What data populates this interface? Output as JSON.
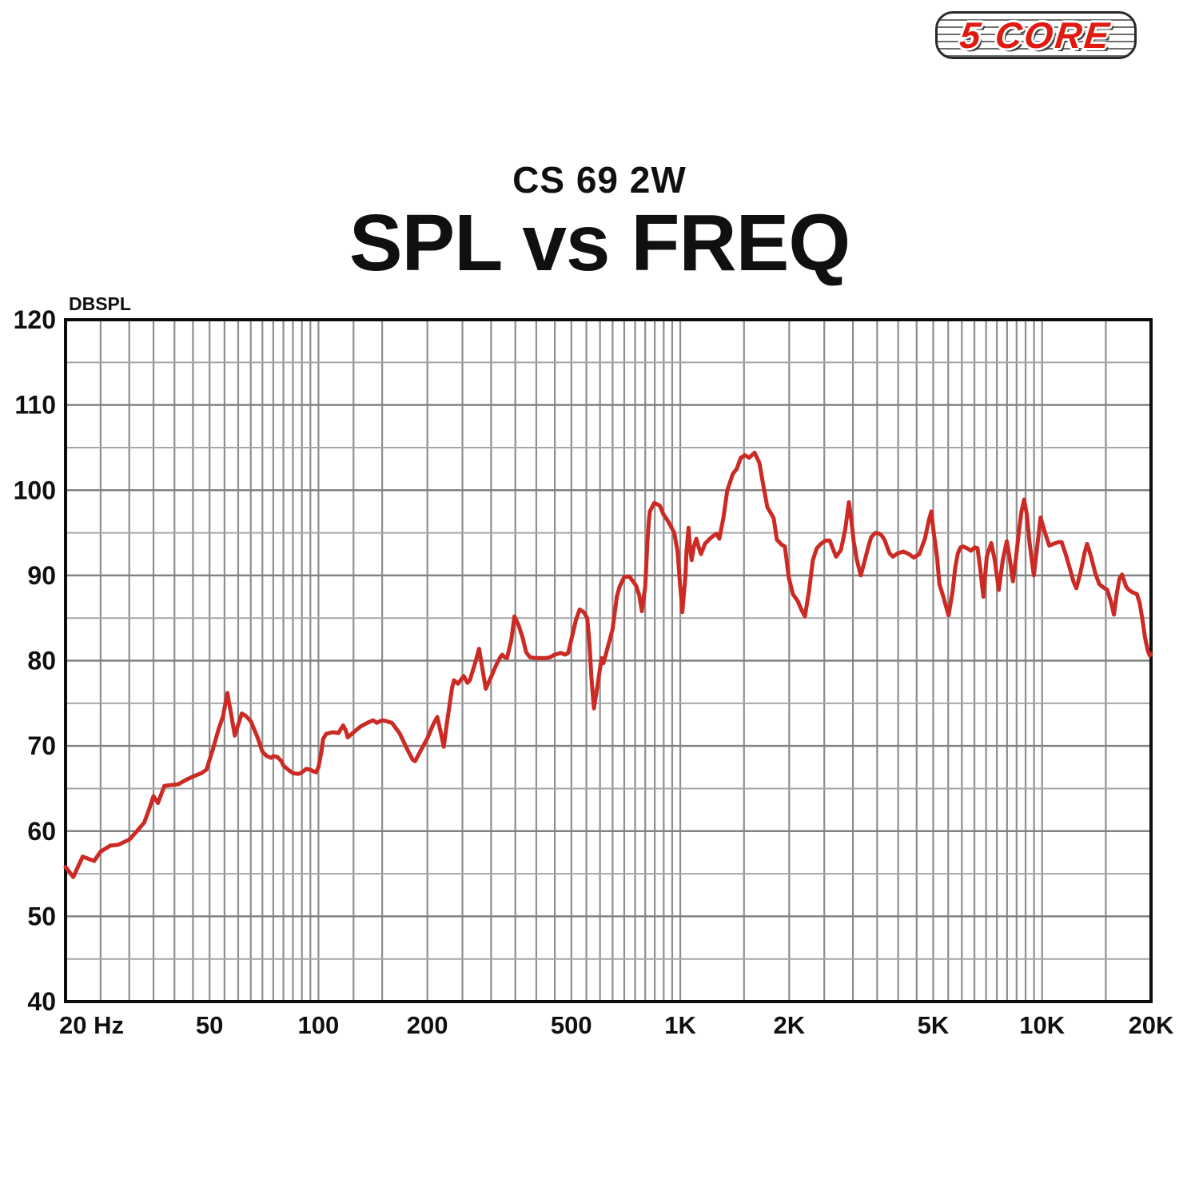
{
  "logo": {
    "text": "5 CORE",
    "color": "#e01a11"
  },
  "header": {
    "subtitle": "CS 69 2W",
    "title": "SPL vs FREQ"
  },
  "chart_data": {
    "type": "line",
    "title": "SPL vs FREQ",
    "subtitle": "CS 69 2W",
    "ylabel": "DBSPL",
    "x_scale": "log",
    "xlim": [
      20,
      20000
    ],
    "ylim": [
      40,
      120
    ],
    "grid": true,
    "legend": "none",
    "y_major_ticks": [
      40,
      50,
      60,
      70,
      80,
      90,
      100,
      110,
      120
    ],
    "y_minor_step": 5,
    "x_ticks": [
      {
        "f": 20,
        "label": "20 Hz"
      },
      {
        "f": 50,
        "label": "50"
      },
      {
        "f": 100,
        "label": "100"
      },
      {
        "f": 200,
        "label": "200"
      },
      {
        "f": 500,
        "label": "500"
      },
      {
        "f": 1000,
        "label": "1K"
      },
      {
        "f": 2000,
        "label": "2K"
      },
      {
        "f": 5000,
        "label": "5K"
      },
      {
        "f": 10000,
        "label": "10K"
      },
      {
        "f": 20000,
        "label": "20K"
      }
    ],
    "grid_frequencies": [
      20,
      25,
      30,
      35,
      40,
      45,
      50,
      55,
      60,
      65,
      70,
      75,
      80,
      85,
      90,
      95,
      100,
      125,
      150,
      200,
      250,
      300,
      350,
      400,
      450,
      500,
      550,
      600,
      650,
      700,
      750,
      800,
      850,
      900,
      950,
      1000,
      1500,
      2000,
      2500,
      3000,
      3500,
      4000,
      4500,
      5000,
      5500,
      6000,
      6500,
      7000,
      7500,
      8000,
      8500,
      9000,
      9500,
      10000,
      15000,
      20000
    ],
    "series": [
      {
        "name": "SPL",
        "color": "#cc2a24",
        "points": [
          [
            20,
            55.8
          ],
          [
            21,
            54.6
          ],
          [
            22.3,
            57.0
          ],
          [
            24,
            56.5
          ],
          [
            25,
            57.6
          ],
          [
            26.6,
            58.3
          ],
          [
            28,
            58.4
          ],
          [
            30,
            59.0
          ],
          [
            31.5,
            60.0
          ],
          [
            33,
            61.0
          ],
          [
            34,
            62.5
          ],
          [
            35,
            64.1
          ],
          [
            36,
            63.3
          ],
          [
            37.5,
            65.3
          ],
          [
            39,
            65.4
          ],
          [
            41,
            65.5
          ],
          [
            43,
            66.0
          ],
          [
            45,
            66.4
          ],
          [
            47.5,
            66.8
          ],
          [
            49,
            67.2
          ],
          [
            51,
            69.5
          ],
          [
            53,
            72.0
          ],
          [
            54.5,
            73.5
          ],
          [
            56,
            76.2
          ],
          [
            57.5,
            73.5
          ],
          [
            58.7,
            71.2
          ],
          [
            60,
            72.5
          ],
          [
            61.4,
            73.8
          ],
          [
            63,
            73.5
          ],
          [
            65,
            72.9
          ],
          [
            68,
            70.9
          ],
          [
            70,
            69.3
          ],
          [
            72,
            68.8
          ],
          [
            74,
            68.6
          ],
          [
            75,
            68.8
          ],
          [
            77,
            68.7
          ],
          [
            79,
            68.2
          ],
          [
            80,
            67.7
          ],
          [
            83,
            67.1
          ],
          [
            85,
            66.8
          ],
          [
            88,
            66.7
          ],
          [
            90,
            66.9
          ],
          [
            92.5,
            67.3
          ],
          [
            95,
            67.2
          ],
          [
            97,
            67.0
          ],
          [
            98.5,
            66.9
          ],
          [
            100,
            67.5
          ],
          [
            102,
            69.4
          ],
          [
            103,
            70.8
          ],
          [
            105,
            71.4
          ],
          [
            107,
            71.5
          ],
          [
            110,
            71.6
          ],
          [
            113.5,
            71.5
          ],
          [
            117,
            72.4
          ],
          [
            119,
            71.8
          ],
          [
            120.5,
            71.0
          ],
          [
            125,
            71.6
          ],
          [
            131,
            72.3
          ],
          [
            136.5,
            72.7
          ],
          [
            141.5,
            73.0
          ],
          [
            145,
            72.7
          ],
          [
            150,
            73.0
          ],
          [
            154,
            72.9
          ],
          [
            159.5,
            72.7
          ],
          [
            167.5,
            71.5
          ],
          [
            176,
            69.6
          ],
          [
            182,
            68.4
          ],
          [
            185,
            68.2
          ],
          [
            192,
            69.5
          ],
          [
            200,
            70.9
          ],
          [
            208,
            72.6
          ],
          [
            213,
            73.4
          ],
          [
            218,
            71.5
          ],
          [
            222,
            69.9
          ],
          [
            226,
            72.4
          ],
          [
            230,
            74.6
          ],
          [
            234,
            76.8
          ],
          [
            237,
            77.7
          ],
          [
            243,
            77.3
          ],
          [
            252,
            78.2
          ],
          [
            258,
            77.4
          ],
          [
            262,
            77.7
          ],
          [
            270,
            79.5
          ],
          [
            278,
            81.4
          ],
          [
            284,
            79.0
          ],
          [
            290,
            76.7
          ],
          [
            300,
            78.1
          ],
          [
            310,
            79.5
          ],
          [
            318,
            80.4
          ],
          [
            322,
            80.7
          ],
          [
            327,
            80.4
          ],
          [
            332,
            80.3
          ],
          [
            341,
            82.4
          ],
          [
            348,
            85.2
          ],
          [
            357,
            84.2
          ],
          [
            366,
            82.8
          ],
          [
            375,
            81.0
          ],
          [
            384,
            80.4
          ],
          [
            400,
            80.3
          ],
          [
            424,
            80.3
          ],
          [
            437,
            80.4
          ],
          [
            450,
            80.7
          ],
          [
            468,
            80.9
          ],
          [
            480,
            80.7
          ],
          [
            490,
            80.9
          ],
          [
            502,
            82.8
          ],
          [
            515,
            84.8
          ],
          [
            527,
            86.0
          ],
          [
            541,
            85.7
          ],
          [
            553,
            85.0
          ],
          [
            561,
            82.1
          ],
          [
            568,
            78.0
          ],
          [
            577,
            74.4
          ],
          [
            591,
            77.2
          ],
          [
            606,
            80.3
          ],
          [
            613,
            79.7
          ],
          [
            625,
            81.0
          ],
          [
            637,
            82.3
          ],
          [
            650,
            83.7
          ],
          [
            668,
            87.5
          ],
          [
            680,
            88.7
          ],
          [
            700,
            89.8
          ],
          [
            722,
            89.9
          ],
          [
            740,
            89.3
          ],
          [
            755,
            88.8
          ],
          [
            770,
            87.7
          ],
          [
            783,
            85.8
          ],
          [
            800,
            88.7
          ],
          [
            806,
            91.5
          ],
          [
            812,
            94.2
          ],
          [
            819,
            96.4
          ],
          [
            824,
            97.5
          ],
          [
            847,
            98.5
          ],
          [
            877,
            98.2
          ],
          [
            900,
            97.1
          ],
          [
            924,
            96.4
          ],
          [
            938,
            95.9
          ],
          [
            962,
            95.0
          ],
          [
            983,
            92.8
          ],
          [
            998,
            89.0
          ],
          [
            1008,
            87.1
          ],
          [
            1013,
            85.7
          ],
          [
            1034,
            90.0
          ],
          [
            1040,
            92.8
          ],
          [
            1054,
            95.6
          ],
          [
            1064,
            93.1
          ],
          [
            1075,
            91.8
          ],
          [
            1090,
            93.4
          ],
          [
            1108,
            94.3
          ],
          [
            1125,
            93.3
          ],
          [
            1141,
            92.5
          ],
          [
            1170,
            93.7
          ],
          [
            1200,
            94.2
          ],
          [
            1230,
            94.6
          ],
          [
            1260,
            94.9
          ],
          [
            1282,
            94.3
          ],
          [
            1315,
            96.7
          ],
          [
            1349,
            100.0
          ],
          [
            1396,
            101.9
          ],
          [
            1432,
            102.5
          ],
          [
            1469,
            103.8
          ],
          [
            1508,
            104.1
          ],
          [
            1550,
            103.8
          ],
          [
            1604,
            104.4
          ],
          [
            1654,
            103.2
          ],
          [
            1696,
            100.6
          ],
          [
            1740,
            98.0
          ],
          [
            1785,
            97.2
          ],
          [
            1812,
            96.7
          ],
          [
            1849,
            94.2
          ],
          [
            1907,
            93.6
          ],
          [
            1945,
            93.4
          ],
          [
            1996,
            89.7
          ],
          [
            2048,
            87.8
          ],
          [
            2111,
            87.0
          ],
          [
            2166,
            85.9
          ],
          [
            2210,
            85.2
          ],
          [
            2267,
            88.1
          ],
          [
            2325,
            91.8
          ],
          [
            2385,
            93.2
          ],
          [
            2446,
            93.7
          ],
          [
            2522,
            94.1
          ],
          [
            2588,
            94.1
          ],
          [
            2696,
            92.2
          ],
          [
            2780,
            93.0
          ],
          [
            2860,
            95.5
          ],
          [
            2924,
            98.6
          ],
          [
            2970,
            96.5
          ],
          [
            3014,
            94.0
          ],
          [
            3076,
            91.8
          ],
          [
            3155,
            90.0
          ],
          [
            3237,
            91.8
          ],
          [
            3320,
            93.6
          ],
          [
            3372,
            94.5
          ],
          [
            3459,
            95.0
          ],
          [
            3548,
            94.9
          ],
          [
            3602,
            94.7
          ],
          [
            3676,
            94.1
          ],
          [
            3732,
            93.3
          ],
          [
            3789,
            92.6
          ],
          [
            3868,
            92.2
          ],
          [
            3989,
            92.6
          ],
          [
            4134,
            92.8
          ],
          [
            4284,
            92.5
          ],
          [
            4418,
            92.1
          ],
          [
            4578,
            92.5
          ],
          [
            4743,
            94.3
          ],
          [
            4866,
            96.5
          ],
          [
            4941,
            97.5
          ],
          [
            5018,
            95.0
          ],
          [
            5122,
            92.2
          ],
          [
            5200,
            89.0
          ],
          [
            5333,
            87.5
          ],
          [
            5513,
            85.3
          ],
          [
            5656,
            88.1
          ],
          [
            5752,
            90.9
          ],
          [
            5850,
            92.6
          ],
          [
            5950,
            93.3
          ],
          [
            6049,
            93.4
          ],
          [
            6252,
            93.1
          ],
          [
            6356,
            92.9
          ],
          [
            6518,
            93.3
          ],
          [
            6629,
            93.2
          ],
          [
            6742,
            90.9
          ],
          [
            6880,
            87.5
          ],
          [
            7031,
            92.2
          ],
          [
            7236,
            93.8
          ],
          [
            7398,
            91.8
          ],
          [
            7589,
            88.3
          ],
          [
            7783,
            91.8
          ],
          [
            7985,
            94.0
          ],
          [
            8122,
            92.2
          ],
          [
            8305,
            89.3
          ],
          [
            8475,
            92.2
          ],
          [
            8620,
            95.0
          ],
          [
            8768,
            97.5
          ],
          [
            8918,
            98.9
          ],
          [
            9069,
            97.2
          ],
          [
            9222,
            94.0
          ],
          [
            9489,
            90.0
          ],
          [
            9694,
            93.4
          ],
          [
            9900,
            96.8
          ],
          [
            10202,
            94.9
          ],
          [
            10468,
            93.5
          ],
          [
            10740,
            93.7
          ],
          [
            11100,
            93.9
          ],
          [
            11326,
            93.9
          ],
          [
            11617,
            92.5
          ],
          [
            11916,
            90.9
          ],
          [
            12224,
            89.2
          ],
          [
            12438,
            88.5
          ],
          [
            12759,
            90.3
          ],
          [
            13089,
            92.6
          ],
          [
            13312,
            93.7
          ],
          [
            13658,
            92.2
          ],
          [
            14013,
            90.3
          ],
          [
            14377,
            89.0
          ],
          [
            14750,
            88.6
          ],
          [
            15134,
            88.3
          ],
          [
            15528,
            86.8
          ],
          [
            15796,
            85.4
          ],
          [
            16068,
            87.8
          ],
          [
            16348,
            89.6
          ],
          [
            16632,
            90.1
          ],
          [
            17068,
            88.7
          ],
          [
            17366,
            88.3
          ],
          [
            17818,
            88.0
          ],
          [
            18282,
            87.8
          ],
          [
            18598,
            86.8
          ],
          [
            18922,
            84.9
          ],
          [
            19252,
            82.7
          ],
          [
            19588,
            81.2
          ],
          [
            19824,
            80.6
          ],
          [
            20000,
            80.8
          ]
        ]
      }
    ]
  }
}
